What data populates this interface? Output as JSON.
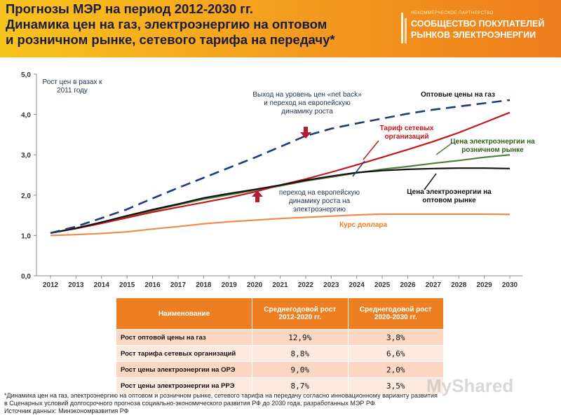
{
  "header": {
    "title_lines": [
      "Прогнозы МЭР на период 2012-2030 гг.",
      "Динамика цен на газ, электроэнергию на оптовом",
      "и розничном рынке, сетевого тарифа на передачу*"
    ],
    "logo_tiny": "НЕКОММЕРЧЕСКОЕ ПАРТНЕРСТВО",
    "logo_line1": "СООБЩЕСТВО ПОКУПАТЕЛЕЙ",
    "logo_line2": "РЫНКОВ ЭЛЕКТРОЭНЕРГИИ"
  },
  "chart_data": {
    "type": "line",
    "ylabel": "Рост цен в разах к 2011 году",
    "ylim": [
      0,
      5
    ],
    "yticks": [
      "0,0",
      "1,0",
      "2,0",
      "3,0",
      "4,0",
      "5,0"
    ],
    "categories": [
      "2012",
      "2013",
      "2014",
      "2015",
      "2016",
      "2017",
      "2018",
      "2019",
      "2020",
      "2021",
      "2022",
      "2023",
      "2024",
      "2025",
      "2026",
      "2027",
      "2028",
      "2029",
      "2030"
    ],
    "series": [
      {
        "name": "Оптовые цены на газ",
        "color": "#1f3a7a",
        "dashed": true,
        "values": [
          1.06,
          1.22,
          1.43,
          1.65,
          1.92,
          2.18,
          2.43,
          2.68,
          2.93,
          3.2,
          3.47,
          3.65,
          3.78,
          3.9,
          4.02,
          4.12,
          4.2,
          4.28,
          4.36
        ]
      },
      {
        "name": "Тариф сетевых организаций",
        "color": "#c4161c",
        "dashed": false,
        "values": [
          1.06,
          1.17,
          1.3,
          1.44,
          1.58,
          1.7,
          1.82,
          1.94,
          2.08,
          2.25,
          2.4,
          2.57,
          2.75,
          2.94,
          3.13,
          3.33,
          3.55,
          3.8,
          4.05
        ]
      },
      {
        "name": "Цена электроэнергии на розничном рынке",
        "color": "#4f7f3a",
        "dashed": false,
        "values": [
          1.06,
          1.18,
          1.32,
          1.47,
          1.62,
          1.76,
          1.9,
          2.01,
          2.12,
          2.23,
          2.35,
          2.45,
          2.55,
          2.64,
          2.71,
          2.79,
          2.86,
          2.94,
          3.0
        ]
      },
      {
        "name": "Цена электроэнергии на оптовом рынке",
        "color": "#111111",
        "dashed": false,
        "values": [
          1.06,
          1.18,
          1.33,
          1.49,
          1.64,
          1.78,
          1.93,
          2.04,
          2.14,
          2.25,
          2.37,
          2.47,
          2.56,
          2.61,
          2.64,
          2.66,
          2.67,
          2.67,
          2.66
        ]
      },
      {
        "name": "Курс доллара",
        "color": "#f08a4b",
        "dashed": false,
        "values": [
          1.0,
          1.02,
          1.05,
          1.09,
          1.16,
          1.22,
          1.29,
          1.34,
          1.38,
          1.42,
          1.45,
          1.48,
          1.51,
          1.53,
          1.53,
          1.53,
          1.53,
          1.53,
          1.52
        ]
      }
    ],
    "annotations": {
      "netback": "Выход на уровень цен «net back» и переход на европейскую динамику роста",
      "transition": "переход на европейскую динамику роста на электроэнергию"
    },
    "labels": {
      "gas": "Оптовые цены на газ",
      "grid": "Тариф сетевых организаций",
      "retail": "Цена электроэнергии на розничном рынке",
      "wholesale": "Цена электроэнергии на оптовом рынке",
      "usd": "Курс доллара"
    }
  },
  "table": {
    "headers": [
      "Наименование",
      "Среднегодовой рост 2012-2020 гг.",
      "Среднегодовой рост 2020-2030 гг."
    ],
    "rows": [
      [
        "Рост оптовой цены на газ",
        "12,9%",
        "3,8%"
      ],
      [
        "Рост тарифа сетевых организаций",
        "8,8%",
        "6,6%"
      ],
      [
        "Рост цены электроэнергии на ОРЭ",
        "9,0%",
        "2,0%"
      ],
      [
        "Рост цены электроэнергии на РРЭ",
        "8,7%",
        "3,5%"
      ]
    ]
  },
  "footer": {
    "line1": "*Динамика цен на газ, электроэнергию на оптовом  и розничном рынке, сетевого тарифа на передачу согласно инновационному варианту развития",
    "line2": "в Сценарных условий долгосрочного прогноза социально-экономического развития РФ до 2030 года, разработанных МЭР РФ",
    "line3": "Источник данных: Минэкономразвития РФ"
  },
  "watermark": "MyShared"
}
